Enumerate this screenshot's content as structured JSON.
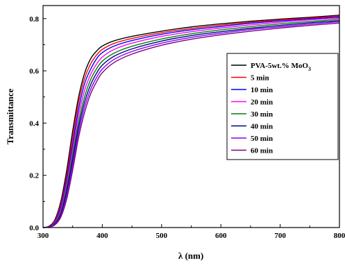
{
  "chart_data": {
    "type": "line",
    "xlabel_symbol": "λ",
    "xlabel_unit": " (nm)",
    "ylabel": "Transmittance",
    "xlim": [
      300,
      800
    ],
    "ylim": [
      0,
      0.85
    ],
    "x_ticks": [
      "300",
      "400",
      "500",
      "600",
      "700",
      "800"
    ],
    "y_ticks": [
      "0.0",
      "0.2",
      "0.4",
      "0.6",
      "0.8"
    ],
    "grid": false,
    "legend_position": "right",
    "x": [
      300,
      310,
      320,
      330,
      340,
      350,
      360,
      370,
      380,
      390,
      400,
      420,
      450,
      500,
      550,
      600,
      650,
      700,
      750,
      800
    ],
    "series": [
      {
        "name_main": "PVA-5wt.% MoO",
        "name_sub": "3",
        "color": "#000000",
        "values": [
          0.0,
          0.005,
          0.03,
          0.1,
          0.22,
          0.37,
          0.5,
          0.59,
          0.645,
          0.675,
          0.695,
          0.715,
          0.732,
          0.752,
          0.768,
          0.78,
          0.79,
          0.798,
          0.805,
          0.813
        ]
      },
      {
        "name_main": "5 min",
        "name_sub": "",
        "color": "#ff0000",
        "values": [
          0.0,
          0.004,
          0.026,
          0.09,
          0.2,
          0.345,
          0.48,
          0.57,
          0.625,
          0.66,
          0.682,
          0.705,
          0.724,
          0.746,
          0.762,
          0.775,
          0.786,
          0.795,
          0.802,
          0.81
        ]
      },
      {
        "name_main": "10 min",
        "name_sub": "",
        "color": "#0000ff",
        "values": [
          0.0,
          0.004,
          0.022,
          0.08,
          0.185,
          0.32,
          0.455,
          0.55,
          0.605,
          0.645,
          0.67,
          0.695,
          0.716,
          0.74,
          0.757,
          0.77,
          0.782,
          0.791,
          0.799,
          0.806
        ]
      },
      {
        "name_main": "20 min",
        "name_sub": "",
        "color": "#ff00ff",
        "values": [
          0.0,
          0.003,
          0.019,
          0.07,
          0.17,
          0.3,
          0.43,
          0.525,
          0.585,
          0.625,
          0.653,
          0.682,
          0.706,
          0.732,
          0.75,
          0.764,
          0.776,
          0.786,
          0.795,
          0.802
        ]
      },
      {
        "name_main": "30 min",
        "name_sub": "",
        "color": "#008000",
        "values": [
          0.0,
          0.003,
          0.016,
          0.06,
          0.155,
          0.28,
          0.405,
          0.5,
          0.565,
          0.607,
          0.637,
          0.668,
          0.694,
          0.722,
          0.742,
          0.757,
          0.769,
          0.78,
          0.789,
          0.797
        ]
      },
      {
        "name_main": "40 min",
        "name_sub": "",
        "color": "#000080",
        "values": [
          0.0,
          0.002,
          0.014,
          0.052,
          0.14,
          0.26,
          0.385,
          0.48,
          0.545,
          0.59,
          0.622,
          0.656,
          0.684,
          0.714,
          0.735,
          0.75,
          0.763,
          0.774,
          0.784,
          0.792
        ]
      },
      {
        "name_main": "50 min",
        "name_sub": "",
        "color": "#8000ff",
        "values": [
          0.0,
          0.002,
          0.012,
          0.045,
          0.125,
          0.24,
          0.365,
          0.46,
          0.527,
          0.573,
          0.607,
          0.644,
          0.674,
          0.706,
          0.728,
          0.744,
          0.758,
          0.769,
          0.779,
          0.788
        ]
      },
      {
        "name_main": "60 min",
        "name_sub": "",
        "color": "#800080",
        "values": [
          0.0,
          0.002,
          0.01,
          0.04,
          0.11,
          0.22,
          0.345,
          0.44,
          0.51,
          0.557,
          0.593,
          0.632,
          0.664,
          0.698,
          0.721,
          0.738,
          0.752,
          0.764,
          0.774,
          0.783
        ]
      }
    ]
  }
}
